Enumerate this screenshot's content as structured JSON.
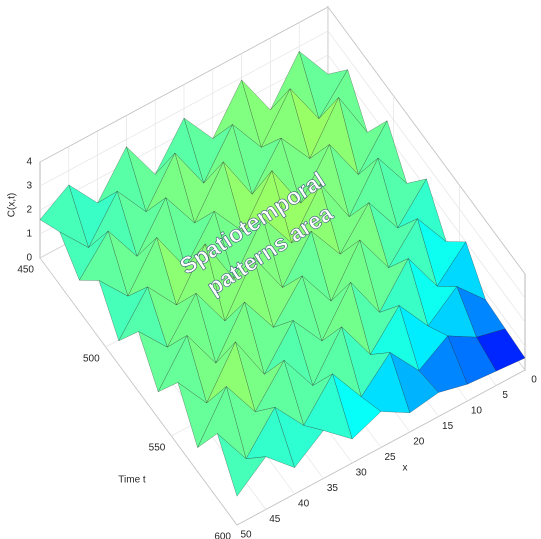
{
  "chart_data": {
    "type": "surface",
    "xlabel": "x",
    "ylabel": "Time t",
    "zlabel": "C(x,t)",
    "annotation": [
      "Spatiotemporal",
      "patterns area"
    ],
    "colormap": "jet",
    "grid": true,
    "x": [
      0,
      5,
      10,
      15,
      20,
      25,
      30,
      35,
      40,
      45,
      50
    ],
    "y": [
      450,
      465,
      480,
      495,
      510,
      525,
      540,
      555,
      570,
      585,
      600
    ],
    "z": [
      [
        1.2,
        2.8,
        1.0,
        2.9,
        1.1,
        2.6,
        0.9,
        2.7,
        1.0,
        2.4,
        1.6
      ],
      [
        2.5,
        1.1,
        3.0,
        1.2,
        2.8,
        1.0,
        2.9,
        1.1,
        2.6,
        0.9,
        2.2
      ],
      [
        1.0,
        3.1,
        1.2,
        2.7,
        1.0,
        3.0,
        1.1,
        2.8,
        1.0,
        2.7,
        1.3
      ],
      [
        2.6,
        1.0,
        2.9,
        1.1,
        3.1,
        1.2,
        2.7,
        1.0,
        2.9,
        1.1,
        2.4
      ],
      [
        1.1,
        2.8,
        1.0,
        3.0,
        1.2,
        2.9,
        1.0,
        3.1,
        1.2,
        2.6,
        1.0
      ],
      [
        2.4,
        1.0,
        2.7,
        1.2,
        2.8,
        1.1,
        3.0,
        1.0,
        2.8,
        1.2,
        2.5
      ],
      [
        0.9,
        2.5,
        1.1,
        2.9,
        1.0,
        2.7,
        1.2,
        2.9,
        1.0,
        2.8,
        1.1
      ],
      [
        2.0,
        0.8,
        2.6,
        1.0,
        2.9,
        1.1,
        2.6,
        1.0,
        3.0,
        1.1,
        2.6
      ],
      [
        0.7,
        1.9,
        0.9,
        2.4,
        1.0,
        2.8,
        1.0,
        2.7,
        1.2,
        2.9,
        1.0
      ],
      [
        0.6,
        0.9,
        1.6,
        0.8,
        2.2,
        1.0,
        2.6,
        1.1,
        2.5,
        1.0,
        2.7
      ],
      [
        0.5,
        0.6,
        0.7,
        1.0,
        0.8,
        1.5,
        1.0,
        2.0,
        1.1,
        2.2,
        1.2
      ]
    ],
    "xlim": [
      0,
      50
    ],
    "xticks": [
      0,
      5,
      10,
      15,
      20,
      25,
      30,
      35,
      40,
      45,
      50
    ],
    "ylim": [
      450,
      600
    ],
    "yticks": [
      450,
      500,
      550,
      600
    ],
    "zlim": [
      0,
      4
    ],
    "zticks": [
      0,
      1,
      2,
      3,
      4
    ]
  }
}
